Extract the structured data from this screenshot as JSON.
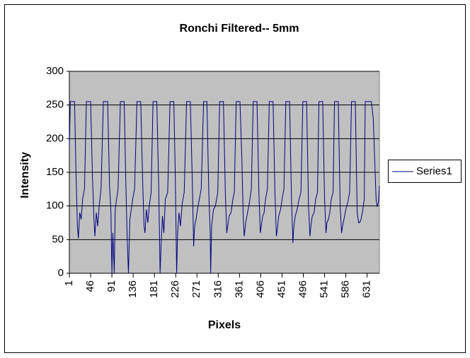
{
  "chart_data": {
    "type": "line",
    "title": "Ronchi Filtered-- 5mm",
    "x_label": "Pixels",
    "y_label": "Intensity",
    "xlim": [
      1,
      657
    ],
    "xticks": [
      1,
      46,
      91,
      136,
      181,
      226,
      271,
      316,
      361,
      406,
      451,
      496,
      541,
      586,
      631
    ],
    "ylim": [
      0,
      300
    ],
    "yticks": [
      0,
      50,
      100,
      150,
      200,
      250,
      300
    ],
    "grid": true,
    "legend": "right",
    "x": [
      1,
      3,
      12,
      15,
      18,
      20,
      23,
      26,
      29,
      33,
      37,
      46,
      50,
      53,
      55,
      58,
      61,
      64,
      68,
      73,
      82,
      86,
      89,
      91,
      93,
      96,
      98,
      101,
      104,
      109,
      117,
      120,
      123,
      126,
      129,
      132,
      135,
      139,
      144,
      152,
      156,
      159,
      161,
      164,
      167,
      170,
      174,
      178,
      186,
      190,
      193,
      195,
      198,
      201,
      204,
      209,
      214,
      222,
      225,
      228,
      230,
      233,
      236,
      240,
      244,
      249,
      257,
      261,
      264,
      266,
      269,
      272,
      276,
      280,
      285,
      292,
      296,
      299,
      300,
      302,
      306,
      310,
      315,
      319,
      327,
      331,
      334,
      336,
      339,
      343,
      347,
      350,
      354,
      362,
      366,
      369,
      371,
      374,
      378,
      382,
      386,
      390,
      398,
      402,
      405,
      407,
      410,
      413,
      416,
      420,
      424,
      432,
      436,
      439,
      441,
      444,
      448,
      451,
      455,
      459,
      467,
      471,
      474,
      476,
      479,
      483,
      487,
      491,
      495,
      503,
      507,
      510,
      512,
      515,
      519,
      522,
      526,
      529,
      537,
      541,
      544,
      546,
      549,
      552,
      555,
      559,
      562,
      570,
      574,
      577,
      579,
      582,
      586,
      590,
      594,
      598,
      606,
      610,
      613,
      615,
      618,
      621,
      623,
      625,
      627,
      640,
      644,
      648,
      650,
      652,
      655,
      657
    ],
    "series": [
      {
        "name": "Series1",
        "color": "#000080",
        "values": [
          190,
          255,
          255,
          150,
          70,
          52,
          90,
          80,
          110,
          125,
          255,
          255,
          140,
          80,
          55,
          90,
          70,
          100,
          125,
          255,
          255,
          130,
          90,
          0,
          60,
          0,
          95,
          110,
          125,
          255,
          255,
          150,
          60,
          0,
          80,
          95,
          110,
          125,
          255,
          255,
          140,
          70,
          60,
          95,
          75,
          100,
          120,
          255,
          255,
          130,
          0,
          40,
          85,
          60,
          110,
          120,
          255,
          255,
          150,
          0,
          60,
          90,
          70,
          105,
          120,
          255,
          255,
          140,
          40,
          70,
          80,
          95,
          110,
          125,
          255,
          255,
          120,
          60,
          0,
          70,
          95,
          100,
          120,
          255,
          255,
          120,
          60,
          70,
          85,
          90,
          110,
          120,
          255,
          255,
          170,
          80,
          55,
          75,
          90,
          105,
          125,
          255,
          255,
          120,
          60,
          70,
          85,
          90,
          110,
          125,
          255,
          255,
          120,
          55,
          65,
          85,
          95,
          110,
          125,
          255,
          255,
          110,
          45,
          70,
          85,
          95,
          110,
          120,
          255,
          255,
          100,
          55,
          70,
          85,
          90,
          110,
          120,
          255,
          255,
          110,
          60,
          75,
          80,
          90,
          110,
          120,
          255,
          255,
          100,
          60,
          70,
          80,
          95,
          105,
          120,
          255,
          255,
          90,
          75,
          75,
          80,
          90,
          100,
          110,
          255,
          255,
          230,
          150,
          110,
          100,
          105,
          130
        ]
      }
    ]
  }
}
